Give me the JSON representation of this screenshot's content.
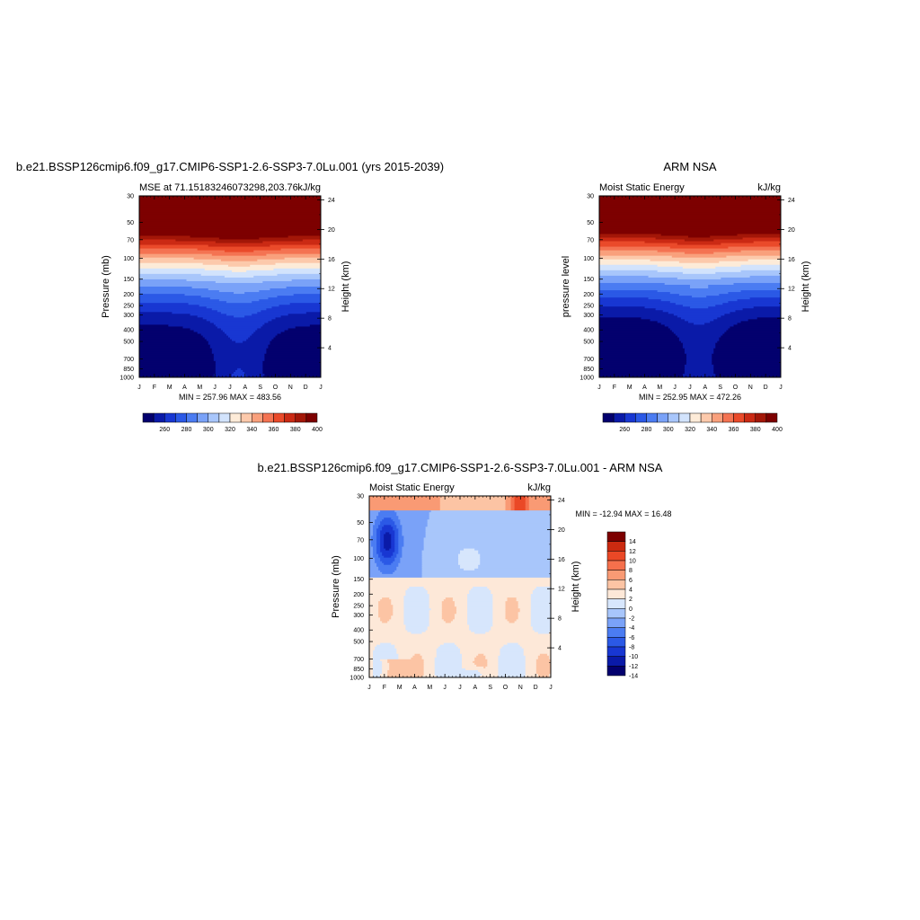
{
  "months": [
    "J",
    "F",
    "M",
    "A",
    "M",
    "J",
    "J",
    "A",
    "S",
    "O",
    "N",
    "D",
    "J"
  ],
  "pressure_ticks": [
    30,
    50,
    70,
    100,
    150,
    200,
    250,
    300,
    400,
    500,
    700,
    850,
    1000
  ],
  "height_ticks_km": [
    4,
    8,
    12,
    16,
    20,
    24
  ],
  "mse_colors": [
    "#03006e",
    "#0a1aa8",
    "#1837d2",
    "#2b59e6",
    "#4b7cf2",
    "#7aa2f8",
    "#a8c6fb",
    "#d2e3fc",
    "#fdebd8",
    "#fcc9ab",
    "#f9a07c",
    "#f47352",
    "#ea4a2a",
    "#cb2a14",
    "#a31708",
    "#7d0000"
  ],
  "diff_colors": [
    "#03006e",
    "#0a1aa8",
    "#1837d2",
    "#2b59e6",
    "#4b7cf2",
    "#7aa2f8",
    "#a8c6fb",
    "#d7e6fc",
    "#fde8d8",
    "#fcc4a4",
    "#f99a74",
    "#f5704c",
    "#ea4826",
    "#cb2a10",
    "#7d0000"
  ],
  "panel1": {
    "title": "b.e21.BSSP126cmip6.f09_g17.CMIP6-SSP1-2.6-SSP3-7.0Lu.001 (yrs 2015-2039)",
    "left_label": "MSE at 71.15183246073298,203.76",
    "right_label": "kJ/kg",
    "ylabel": "Pressure (mb)",
    "y2label": "Height (km)",
    "minmax": "MIN = 257.96 MAX = 483.56",
    "colorbar_labels": [
      "260",
      "280",
      "300",
      "320",
      "340",
      "360",
      "380",
      "400"
    ]
  },
  "panel2": {
    "title": "ARM NSA",
    "left_label": "Moist Static Energy",
    "right_label": "kJ/kg",
    "ylabel": "pressure level",
    "y2label": "Height (km)",
    "minmax": "MIN = 252.95 MAX = 472.26",
    "colorbar_labels": [
      "260",
      "280",
      "300",
      "320",
      "340",
      "360",
      "380",
      "400"
    ]
  },
  "panel3": {
    "title": "b.e21.BSSP126cmip6.f09_g17.CMIP6-SSP1-2.6-SSP3-7.0Lu.001 - ARM NSA",
    "left_label": "Moist Static Energy",
    "right_label": "kJ/kg",
    "ylabel": "Pressure (mb)",
    "y2label": "Height (km)",
    "minmax": "MIN = -12.94 MAX =  16.48",
    "colorbar_labels": [
      "14",
      "12",
      "10",
      "8",
      "6",
      "4",
      "2",
      "0",
      "-2",
      "-4",
      "-6",
      "-8",
      "-10",
      "-12",
      "-14"
    ]
  },
  "chart_data": [
    {
      "type": "heatmap",
      "title": "b.e21.BSSP126cmip6.f09_g17.CMIP6-SSP1-2.6-SSP3-7.0Lu.001 (yrs 2015-2039)",
      "subtitle": "MSE at 71.15183246073298,203.76",
      "units": "kJ/kg",
      "x": [
        "J",
        "F",
        "M",
        "A",
        "M",
        "J",
        "J",
        "A",
        "S",
        "O",
        "N",
        "D",
        "J"
      ],
      "y_pressure_mb": [
        30,
        50,
        70,
        100,
        150,
        200,
        250,
        300,
        400,
        500,
        700,
        850,
        1000
      ],
      "ylabel": "Pressure (mb)",
      "y2label": "Height (km)",
      "min": 257.96,
      "max": 483.56,
      "levels": [
        260,
        270,
        280,
        290,
        300,
        310,
        320,
        330,
        340,
        350,
        360,
        370,
        380,
        390,
        400
      ]
    },
    {
      "type": "heatmap",
      "title": "ARM NSA",
      "subtitle": "Moist Static Energy",
      "units": "kJ/kg",
      "x": [
        "J",
        "F",
        "M",
        "A",
        "M",
        "J",
        "J",
        "A",
        "S",
        "O",
        "N",
        "D",
        "J"
      ],
      "y_pressure_mb": [
        30,
        50,
        70,
        100,
        150,
        200,
        250,
        300,
        400,
        500,
        700,
        850,
        1000
      ],
      "ylabel": "pressure level",
      "y2label": "Height (km)",
      "min": 252.95,
      "max": 472.26,
      "levels": [
        260,
        270,
        280,
        290,
        300,
        310,
        320,
        330,
        340,
        350,
        360,
        370,
        380,
        390,
        400
      ]
    },
    {
      "type": "heatmap",
      "title": "b.e21.BSSP126cmip6.f09_g17.CMIP6-SSP1-2.6-SSP3-7.0Lu.001 - ARM NSA",
      "subtitle": "Moist Static Energy",
      "units": "kJ/kg",
      "x": [
        "J",
        "F",
        "M",
        "A",
        "M",
        "J",
        "J",
        "A",
        "S",
        "O",
        "N",
        "D",
        "J"
      ],
      "y_pressure_mb": [
        30,
        50,
        70,
        100,
        150,
        200,
        250,
        300,
        400,
        500,
        700,
        850,
        1000
      ],
      "ylabel": "Pressure (mb)",
      "y2label": "Height (km)",
      "min": -12.94,
      "max": 16.48,
      "levels": [
        -14,
        -12,
        -10,
        -8,
        -6,
        -4,
        -2,
        0,
        2,
        4,
        6,
        8,
        10,
        12,
        14
      ]
    }
  ]
}
